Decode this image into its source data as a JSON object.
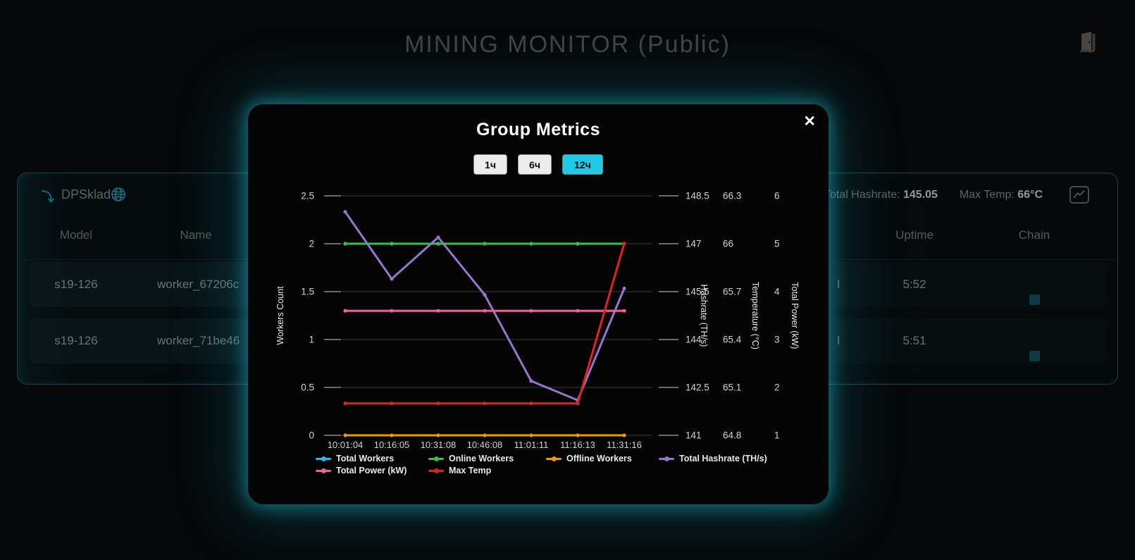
{
  "header": {
    "title": "MINING MONITOR (Public)"
  },
  "group_panel": {
    "name": "DPSklad",
    "total_hashrate_label": "Total Hashrate:",
    "total_hashrate_value": "145.05",
    "max_temp_label": "Max Temp:",
    "max_temp_value": "66°C",
    "columns": [
      "Model",
      "Name",
      "Uptime",
      "Chain"
    ],
    "rows": [
      {
        "model": "s19-126",
        "name": "worker_67206c",
        "hidden_col_fragment": "l",
        "uptime": "5:52",
        "chain_cells": 3
      },
      {
        "model": "s19-126",
        "name": "worker_71be46",
        "hidden_col_fragment": "l",
        "uptime": "5:51",
        "chain_cells": 3
      }
    ]
  },
  "modal": {
    "title": "Group Metrics",
    "close_label": "✕",
    "range_buttons": [
      {
        "label": "1ч",
        "active": false
      },
      {
        "label": "6ч",
        "active": false
      },
      {
        "label": "12ч",
        "active": true
      }
    ]
  },
  "chart_data": {
    "type": "line",
    "x": [
      "10:01:04",
      "10:16:05",
      "10:31:08",
      "10:46:08",
      "11:01:11",
      "11:16:13",
      "11:31:16"
    ],
    "axes": {
      "workers": {
        "title": "Workers Count",
        "min": 0,
        "max": 2.5,
        "ticks": [
          2.5,
          2,
          1.5,
          1,
          0.5,
          0
        ]
      },
      "hashrate": {
        "title": "Hashrate (TH/s)",
        "min": 141,
        "max": 148.5,
        "ticks": [
          148.5,
          147,
          145.5,
          144,
          142.5,
          141
        ]
      },
      "temperature": {
        "title": "Temperature (°C)",
        "min": 64.8,
        "max": 66.3,
        "ticks": [
          66.3,
          66,
          65.7,
          65.4,
          65.1,
          64.8
        ]
      },
      "power": {
        "title": "Total Power (kW)",
        "min": 1,
        "max": 6,
        "ticks": [
          6,
          5,
          4,
          3,
          2,
          1
        ]
      }
    },
    "series": [
      {
        "name": "Total Workers",
        "axis": "workers",
        "color": "#29b6f6",
        "values": [
          2,
          2,
          2,
          2,
          2,
          2,
          2
        ]
      },
      {
        "name": "Online Workers",
        "axis": "workers",
        "color": "#3cbe46",
        "values": [
          2,
          2,
          2,
          2,
          2,
          2,
          2
        ]
      },
      {
        "name": "Offline Workers",
        "axis": "workers",
        "color": "#e89a10",
        "values": [
          0,
          0,
          0,
          0,
          0,
          0,
          0
        ]
      },
      {
        "name": "Total Hashrate (TH/s)",
        "axis": "hashrate",
        "color": "#9575cd",
        "values": [
          148.0,
          145.9,
          147.2,
          145.4,
          142.7,
          142.1,
          145.6
        ]
      },
      {
        "name": "Total Power (kW)",
        "axis": "power",
        "color": "#f0609f",
        "values": [
          3.6,
          3.6,
          3.6,
          3.6,
          3.6,
          3.6,
          3.6
        ]
      },
      {
        "name": "Max Temp",
        "axis": "temperature",
        "color": "#e12222",
        "values": [
          65,
          65,
          65,
          65,
          65,
          65,
          66
        ]
      }
    ],
    "legend_position": "bottom",
    "grid": true
  },
  "colors": {
    "modal_glow": "#20cde6",
    "active_range": "#1fc9e8",
    "panel_border": "#16444d",
    "grid_line": "#3a3a3a",
    "tick_mark": "#8c8c8c",
    "tick_label": "#d2d2d2"
  }
}
